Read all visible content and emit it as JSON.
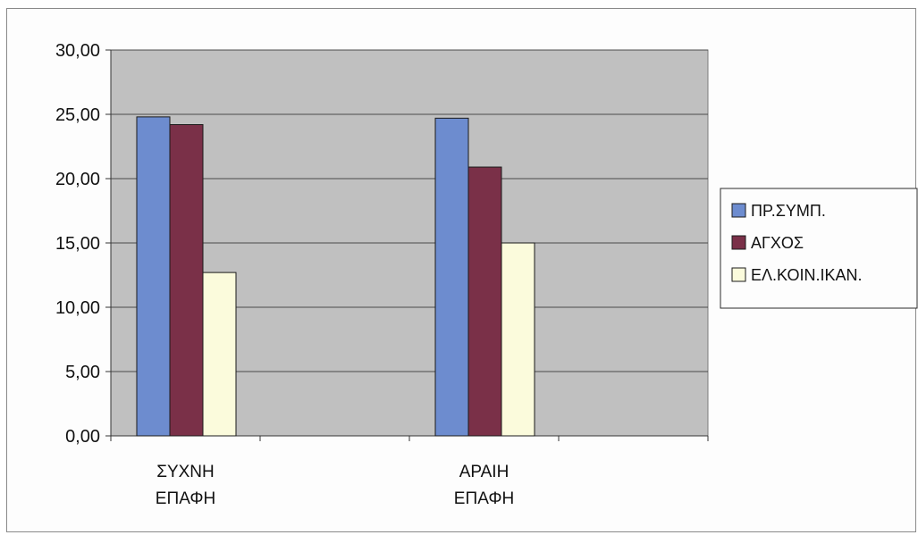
{
  "chart_data": {
    "type": "bar",
    "title": "",
    "xlabel": "",
    "ylabel": "",
    "categories": [
      [
        "ΣΥΧΝΗ",
        "ΕΠΑΦΗ"
      ],
      [
        "ΑΡΑΙΗ",
        "ΕΠΑΦΗ"
      ]
    ],
    "series": [
      {
        "name": "ΠΡ.ΣΥΜΠ.",
        "values": [
          24.8,
          24.7
        ],
        "color": "#6d8ccf"
      },
      {
        "name": "ΑΓΧΟΣ",
        "values": [
          24.2,
          20.9
        ],
        "color": "#7a3048"
      },
      {
        "name": "ΕΛ.ΚΟΙΝ.ΙΚΑΝ.",
        "values": [
          12.7,
          15.0
        ],
        "color": "#fbfbdc"
      }
    ],
    "ylim": [
      0,
      30
    ],
    "yticks": [
      "0,00",
      "5,00",
      "10,00",
      "15,00",
      "20,00",
      "25,00",
      "30,00"
    ],
    "grid": true,
    "legend_position": "right",
    "plot_background": "#c0c0c0"
  }
}
